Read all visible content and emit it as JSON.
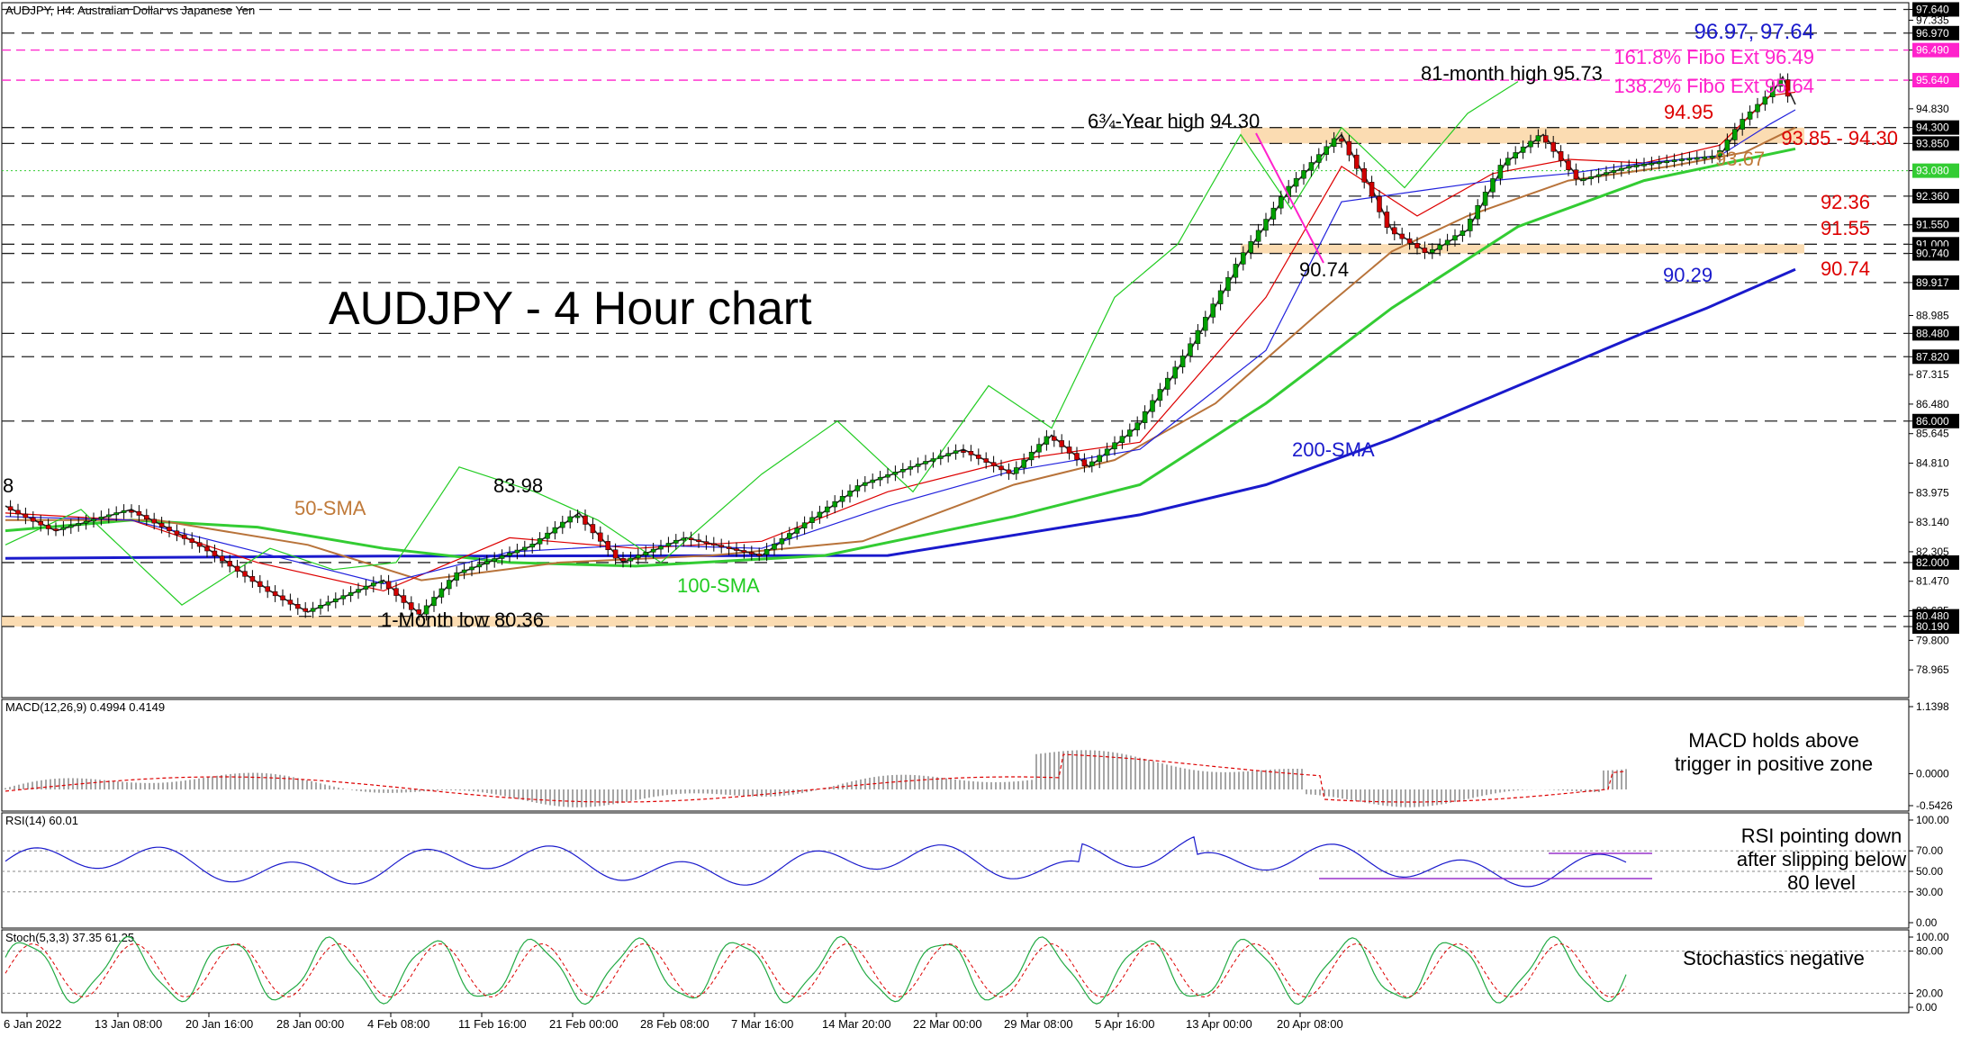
{
  "header": {
    "symbol_line": "AUDJPY, H4:  Australian Dollar vs Japanese Yen"
  },
  "main_title": "AUDJPY - 4 Hour chart",
  "colors": {
    "candle_up": "#00a000",
    "candle_down": "#d00000",
    "sma50": "#b8733a",
    "sma100": "#33cc33",
    "sma200": "#1a1acc",
    "tenkan": "#dd0000",
    "kijun": "#2222dd",
    "chikou": "#22cc22",
    "fibo": "#ff22cc",
    "zone": "#fad6a5",
    "highlight_box": "#ff22cc"
  },
  "chart_data": [
    {
      "type": "line",
      "panel": "price",
      "title": "AUDJPY - 4 Hour chart",
      "x_tick_labels": [
        "6 Jan 2022",
        "13 Jan 08:00",
        "20 Jan 16:00",
        "28 Jan 00:00",
        "4 Feb 08:00",
        "11 Feb 16:00",
        "21 Feb 00:00",
        "28 Feb 08:00",
        "7 Mar 16:00",
        "14 Mar 20:00",
        "22 Mar 00:00",
        "29 Mar 08:00",
        "5 Apr 16:00",
        "13 Apr 00:00",
        "20 Apr 08:00"
      ],
      "ylim": [
        78.18,
        97.83
      ],
      "y_tick_labels": [
        "97.640",
        "97.335",
        "96.970",
        "96.490",
        "95.640",
        "94.830",
        "94.300",
        "93.850",
        "93.080",
        "92.360",
        "91.550",
        "91.000",
        "90.740",
        "89.917",
        "88.985",
        "88.480",
        "87.820",
        "87.315",
        "86.480",
        "86.000",
        "85.645",
        "84.810",
        "83.975",
        "83.140",
        "82.305",
        "82.000",
        "81.470",
        "80.635",
        "80.480",
        "80.190",
        "79.800",
        "78.965"
      ],
      "highlighted_levels": [
        "97.640",
        "96.970",
        "96.490",
        "95.640",
        "94.300",
        "93.850",
        "93.080",
        "92.360",
        "91.550",
        "91.000",
        "90.740",
        "89.917",
        "88.480",
        "87.820",
        "86.000",
        "82.000",
        "80.480",
        "80.190"
      ],
      "fibo_levels": [
        96.49,
        95.64
      ],
      "dashed_levels": [
        97.64,
        96.97,
        94.3,
        93.85,
        92.36,
        91.55,
        91.0,
        90.74,
        89.917,
        88.48,
        87.82,
        86.0,
        82.0,
        80.48,
        80.19
      ],
      "zones": [
        [
          93.85,
          94.3
        ],
        [
          90.74,
          91.0
        ],
        [
          80.19,
          80.48
        ]
      ],
      "series": [
        {
          "name": "200-SMA",
          "x": [
            0,
            300,
            700,
            900,
            1000,
            1100,
            1200,
            1300,
            1350,
            1420
          ],
          "values": [
            82.12,
            82.18,
            82.2,
            83.35,
            84.2,
            85.5,
            87.0,
            88.5,
            89.2,
            90.29
          ]
        },
        {
          "name": "100-SMA",
          "x": [
            0,
            100,
            200,
            300,
            400,
            500,
            650,
            800,
            900,
            1000,
            1100,
            1200,
            1300,
            1380,
            1420
          ],
          "values": [
            82.9,
            83.2,
            83.0,
            82.4,
            82.0,
            81.9,
            82.2,
            83.3,
            84.2,
            86.5,
            89.2,
            91.5,
            92.8,
            93.4,
            93.7
          ]
        },
        {
          "name": "50-SMA",
          "x": [
            0,
            120,
            240,
            330,
            440,
            560,
            680,
            800,
            880,
            960,
            1040,
            1100,
            1160,
            1240,
            1320,
            1380,
            1420
          ],
          "values": [
            83.2,
            83.2,
            82.5,
            81.5,
            82.0,
            82.2,
            82.6,
            84.2,
            84.9,
            86.5,
            89.0,
            90.8,
            91.8,
            92.8,
            93.2,
            93.6,
            94.3
          ]
        },
        {
          "name": "price",
          "x": [
            0,
            40,
            100,
            160,
            210,
            240,
            300,
            330,
            360,
            420,
            455,
            490,
            540,
            600,
            680,
            760,
            800,
            830,
            860,
            900,
            940,
            980,
            1020,
            1060,
            1085,
            1100,
            1130,
            1160,
            1190,
            1220,
            1250,
            1290,
            1330,
            1360,
            1380,
            1400,
            1410,
            1420
          ],
          "values": [
            83.6,
            82.9,
            83.5,
            82.4,
            81.2,
            80.6,
            81.5,
            80.5,
            81.7,
            82.5,
            83.4,
            82.0,
            82.7,
            82.2,
            84.2,
            85.2,
            84.5,
            85.6,
            84.7,
            85.9,
            88.0,
            90.5,
            92.6,
            94.1,
            92.5,
            91.4,
            90.74,
            91.4,
            93.3,
            94.1,
            92.8,
            93.2,
            93.4,
            93.5,
            94.5,
            95.2,
            95.73,
            94.95
          ]
        },
        {
          "name": "tenkan",
          "x": [
            0,
            100,
            200,
            300,
            400,
            500,
            600,
            700,
            800,
            900,
            1000,
            1060,
            1120,
            1180,
            1240,
            1300,
            1360,
            1400,
            1420
          ],
          "values": [
            83.4,
            83.2,
            82.0,
            81.2,
            82.7,
            82.4,
            82.6,
            84.0,
            84.9,
            85.4,
            89.5,
            93.2,
            91.8,
            93.0,
            93.4,
            93.3,
            93.8,
            95.2,
            95.3
          ]
        },
        {
          "name": "kijun",
          "x": [
            0,
            100,
            200,
            300,
            400,
            500,
            600,
            700,
            800,
            900,
            1000,
            1060,
            1120,
            1180,
            1240,
            1300,
            1360,
            1400,
            1420
          ],
          "values": [
            83.3,
            83.2,
            82.3,
            81.4,
            82.3,
            82.5,
            82.4,
            83.6,
            84.6,
            85.2,
            88.0,
            92.2,
            92.5,
            92.8,
            93.0,
            93.3,
            93.5,
            94.4,
            94.8
          ]
        },
        {
          "name": "chikou",
          "x": [
            0,
            60,
            140,
            210,
            260,
            310,
            360,
            420,
            470,
            520,
            600,
            660,
            720,
            780,
            830,
            880,
            930,
            980,
            1020,
            1060,
            1110,
            1160,
            1200
          ],
          "values": [
            82.5,
            83.5,
            80.8,
            82.4,
            81.8,
            82.0,
            84.7,
            84.0,
            83.2,
            82.0,
            84.5,
            86.0,
            84.0,
            87.0,
            85.8,
            89.5,
            91.0,
            94.1,
            92.0,
            94.3,
            92.6,
            94.7,
            95.6
          ]
        }
      ],
      "labels": {
        "fibo1": "161.8% Fibo Ext 96.49",
        "fibo2": "138.2% Fibo Ext 95.64",
        "top_levels": "96.97, 97.64",
        "high81": "81-month high 95.73",
        "high634": "6¾-Year high 94.30",
        "lvl9495": "94.95",
        "lvl9385": "93.85 - 94.30",
        "lvl9367": "93.67",
        "lvl9236": "92.36",
        "lvl9155": "91.55",
        "lvl9074r": "90.74",
        "lvl9074c": "90.74",
        "lvl9029": "90.29",
        "sma200": "200-SMA",
        "sma100": "100-SMA",
        "sma50": "50-SMA",
        "h8398": "83.98",
        "low": "1-Month low 80.36",
        "edge8": "8"
      }
    },
    {
      "type": "bar",
      "panel": "macd",
      "title": "MACD(12,26,9) 0.4994 0.4149",
      "y_tick_labels": [
        "1.1398",
        "0.0000",
        "-0.5426"
      ],
      "note": "MACD holds above trigger in positive zone",
      "note_lines": [
        "MACD holds above",
        "trigger in positive zone"
      ]
    },
    {
      "type": "line",
      "panel": "rsi",
      "title": "RSI(14) 60.01",
      "y_tick_labels": [
        "100.00",
        "70.00",
        "50.00",
        "30.00",
        "0.00"
      ],
      "note_lines": [
        "RSI pointing down",
        "after slipping below",
        "80 level"
      ]
    },
    {
      "type": "line",
      "panel": "stoch",
      "title": "Stoch(5,3,3) 37.35 61.25",
      "y_tick_labels": [
        "100.00",
        "80.00",
        "20.00",
        "0.00"
      ],
      "note_lines": [
        "Stochastics negative"
      ]
    }
  ]
}
